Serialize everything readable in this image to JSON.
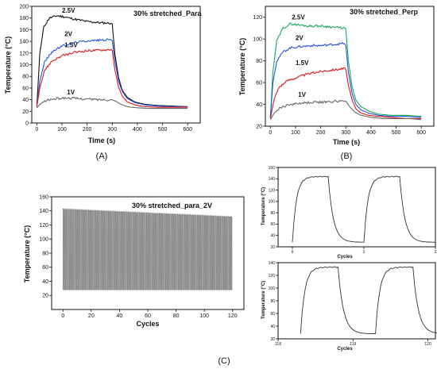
{
  "panels": {
    "a": "(A)",
    "b": "(B)",
    "c": "(C)"
  },
  "chart_data": [
    {
      "id": "A",
      "type": "line",
      "title": "30% stretched_Para",
      "xlabel": "Time (s)",
      "ylabel": "Temperature (°C)",
      "xlim": [
        -20,
        650
      ],
      "ylim": [
        0,
        200
      ],
      "xticks": [
        0,
        100,
        200,
        300,
        400,
        500,
        600
      ],
      "yticks": [
        0,
        20,
        40,
        60,
        80,
        100,
        120,
        140,
        160,
        180,
        200
      ],
      "series": [
        {
          "name": "2.5V",
          "color": "#111111",
          "x": [
            0,
            12,
            28,
            50,
            80,
            110,
            150,
            200,
            250,
            295,
            300,
            310,
            325,
            340,
            360,
            390,
            430,
            480,
            540,
            600
          ],
          "y": [
            28,
            120,
            165,
            180,
            184,
            182,
            178,
            174,
            172,
            171,
            170,
            120,
            78,
            56,
            44,
            36,
            32,
            30,
            29,
            28
          ]
        },
        {
          "name": "2V",
          "color": "#2255dd",
          "x": [
            0,
            12,
            30,
            60,
            100,
            150,
            200,
            250,
            295,
            300,
            310,
            325,
            340,
            360,
            390,
            430,
            480,
            540,
            600
          ],
          "y": [
            28,
            72,
            104,
            122,
            132,
            138,
            141,
            142,
            143,
            141,
            108,
            72,
            54,
            42,
            35,
            31,
            29,
            28,
            28
          ]
        },
        {
          "name": "1.5V",
          "color": "#e01818",
          "x": [
            0,
            12,
            30,
            60,
            100,
            150,
            200,
            250,
            295,
            300,
            310,
            325,
            340,
            360,
            390,
            430,
            480,
            540,
            600
          ],
          "y": [
            28,
            60,
            90,
            106,
            115,
            121,
            124,
            125,
            126,
            124,
            92,
            62,
            46,
            36,
            31,
            28,
            27,
            27,
            27
          ]
        },
        {
          "name": "1V",
          "color": "#666666",
          "x": [
            0,
            15,
            40,
            80,
            120,
            160,
            200,
            250,
            295,
            300,
            315,
            335,
            360,
            400,
            450,
            500,
            550,
            600
          ],
          "y": [
            26,
            33,
            39,
            42,
            43,
            42,
            41,
            40,
            40,
            40,
            37,
            32,
            28,
            26,
            25,
            25,
            25,
            25
          ]
        }
      ],
      "series_labels": [
        {
          "text": "2.5V",
          "x": 100,
          "y": 189
        },
        {
          "text": "2V",
          "x": 110,
          "y": 149
        },
        {
          "text": "1.5V",
          "x": 110,
          "y": 130
        },
        {
          "text": "1V",
          "x": 120,
          "y": 49
        }
      ]
    },
    {
      "id": "B",
      "type": "line",
      "title": "30% stretched_Perp",
      "xlabel": "Time (s)",
      "ylabel": "Temperature (°C)",
      "xlim": [
        -20,
        650
      ],
      "ylim": [
        20,
        130
      ],
      "xticks": [
        0,
        100,
        200,
        300,
        400,
        500,
        600
      ],
      "yticks": [
        20,
        40,
        60,
        80,
        100,
        120
      ],
      "series": [
        {
          "name": "2.5V",
          "color": "#1aaa55",
          "x": [
            0,
            10,
            25,
            50,
            80,
            110,
            150,
            200,
            250,
            295,
            300,
            310,
            325,
            340,
            360,
            390,
            430,
            480,
            540,
            600
          ],
          "y": [
            28,
            70,
            98,
            110,
            114,
            113,
            112,
            112,
            111,
            110,
            109,
            80,
            56,
            44,
            38,
            34,
            31,
            30,
            30,
            29
          ]
        },
        {
          "name": "2V",
          "color": "#2255dd",
          "x": [
            0,
            10,
            25,
            50,
            80,
            120,
            160,
            200,
            250,
            295,
            300,
            310,
            325,
            340,
            360,
            390,
            430,
            480,
            540,
            600
          ],
          "y": [
            28,
            60,
            80,
            88,
            92,
            93,
            94,
            94,
            95,
            96,
            94,
            70,
            50,
            40,
            35,
            32,
            30,
            29,
            29,
            28
          ]
        },
        {
          "name": "1.5V",
          "color": "#e01818",
          "x": [
            0,
            15,
            35,
            70,
            120,
            170,
            220,
            260,
            295,
            300,
            310,
            325,
            340,
            360,
            390,
            430,
            480,
            540,
            600
          ],
          "y": [
            27,
            45,
            56,
            62,
            66,
            69,
            71,
            72,
            73,
            72,
            58,
            44,
            36,
            32,
            30,
            29,
            28,
            27,
            27
          ]
        },
        {
          "name": "1V",
          "color": "#666666",
          "x": [
            0,
            15,
            40,
            80,
            120,
            170,
            220,
            270,
            295,
            300,
            315,
            335,
            360,
            400,
            450,
            500,
            550,
            600
          ],
          "y": [
            26,
            32,
            37,
            40,
            41,
            42,
            42,
            43,
            43,
            43,
            38,
            33,
            30,
            28,
            27,
            27,
            27,
            26
          ]
        }
      ],
      "series_labels": [
        {
          "text": "2.5V",
          "x": 85,
          "y": 118
        },
        {
          "text": "2V",
          "x": 100,
          "y": 99
        },
        {
          "text": "1.5V",
          "x": 100,
          "y": 76
        },
        {
          "text": "1V",
          "x": 110,
          "y": 47
        }
      ]
    },
    {
      "id": "C-main",
      "type": "line",
      "title": "30% stretched_para_2V",
      "xlabel": "Cycles",
      "ylabel": "Temperature (°C)",
      "xlim": [
        -8,
        128
      ],
      "ylim": [
        0,
        160
      ],
      "xticks": [
        0,
        20,
        40,
        60,
        80,
        100,
        120
      ],
      "yticks": [
        20,
        40,
        60,
        80,
        100,
        120,
        140,
        160
      ],
      "cycles": 120,
      "peak_start": 143,
      "peak_end": 132,
      "trough": 28,
      "color": "#777777"
    },
    {
      "id": "C-inset-top",
      "type": "line",
      "xlabel": "Cycles",
      "ylabel": "Temperature (°C)",
      "xlim": [
        -0.2,
        2
      ],
      "ylim": [
        20,
        160
      ],
      "xticks": [
        0,
        1,
        2
      ],
      "yticks": [
        20,
        40,
        60,
        80,
        100,
        120,
        140,
        160
      ],
      "peak": 144,
      "trough": 28,
      "color": "#333333"
    },
    {
      "id": "C-inset-bottom",
      "type": "line",
      "xlabel": "Cycles",
      "ylabel": "Temperature (°C)",
      "xlim": [
        118,
        120.1
      ],
      "ylim": [
        20,
        140
      ],
      "xticks": [
        118,
        119,
        120
      ],
      "yticks": [
        20,
        40,
        60,
        80,
        100,
        120,
        140
      ],
      "peak": 133,
      "trough": 28,
      "color": "#333333"
    }
  ]
}
